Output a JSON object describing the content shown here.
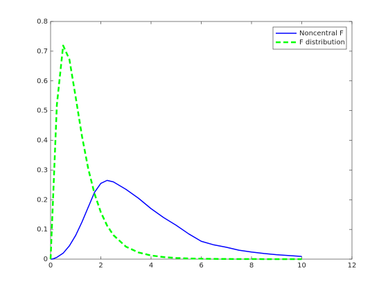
{
  "chart_data": {
    "type": "line",
    "x": [
      0,
      0.1,
      0.25,
      0.5,
      0.75,
      1,
      1.25,
      1.5,
      1.75,
      2,
      2.25,
      2.5,
      3,
      3.5,
      4,
      4.5,
      5,
      5.5,
      6,
      6.5,
      7,
      7.5,
      8,
      8.5,
      9,
      9.5,
      10
    ],
    "series": [
      {
        "name": "Noncentral F",
        "color": "#0000ff",
        "line_style": "solid",
        "line_width": 1.5,
        "values": [
          0,
          0.001,
          0.006,
          0.02,
          0.045,
          0.08,
          0.125,
          0.175,
          0.225,
          0.255,
          0.265,
          0.26,
          0.235,
          0.205,
          0.17,
          0.14,
          0.114,
          0.085,
          0.06,
          0.048,
          0.04,
          0.03,
          0.024,
          0.019,
          0.015,
          0.012,
          0.009
        ]
      },
      {
        "name": "F distribution",
        "color": "#00ff00",
        "line_style": "dashed",
        "line_width": 2.5,
        "values": [
          0,
          0.206,
          0.519,
          0.719,
          0.672,
          0.545,
          0.414,
          0.304,
          0.22,
          0.158,
          0.113,
          0.081,
          0.042,
          0.0225,
          0.0123,
          0.0069,
          0.0039,
          0.0023,
          0.0014,
          0.00085,
          0.00053,
          0.00034,
          0.00022,
          0.00014,
          0.0001,
          6e-05,
          4e-05
        ]
      }
    ],
    "xlim": [
      0,
      12
    ],
    "xticks": [
      0,
      2,
      4,
      6,
      8,
      10,
      12
    ],
    "ylim": [
      0,
      0.8
    ],
    "yticks": [
      0,
      0.1,
      0.2,
      0.3,
      0.4,
      0.5,
      0.6,
      0.7,
      0.8
    ],
    "legend": "upper right"
  }
}
